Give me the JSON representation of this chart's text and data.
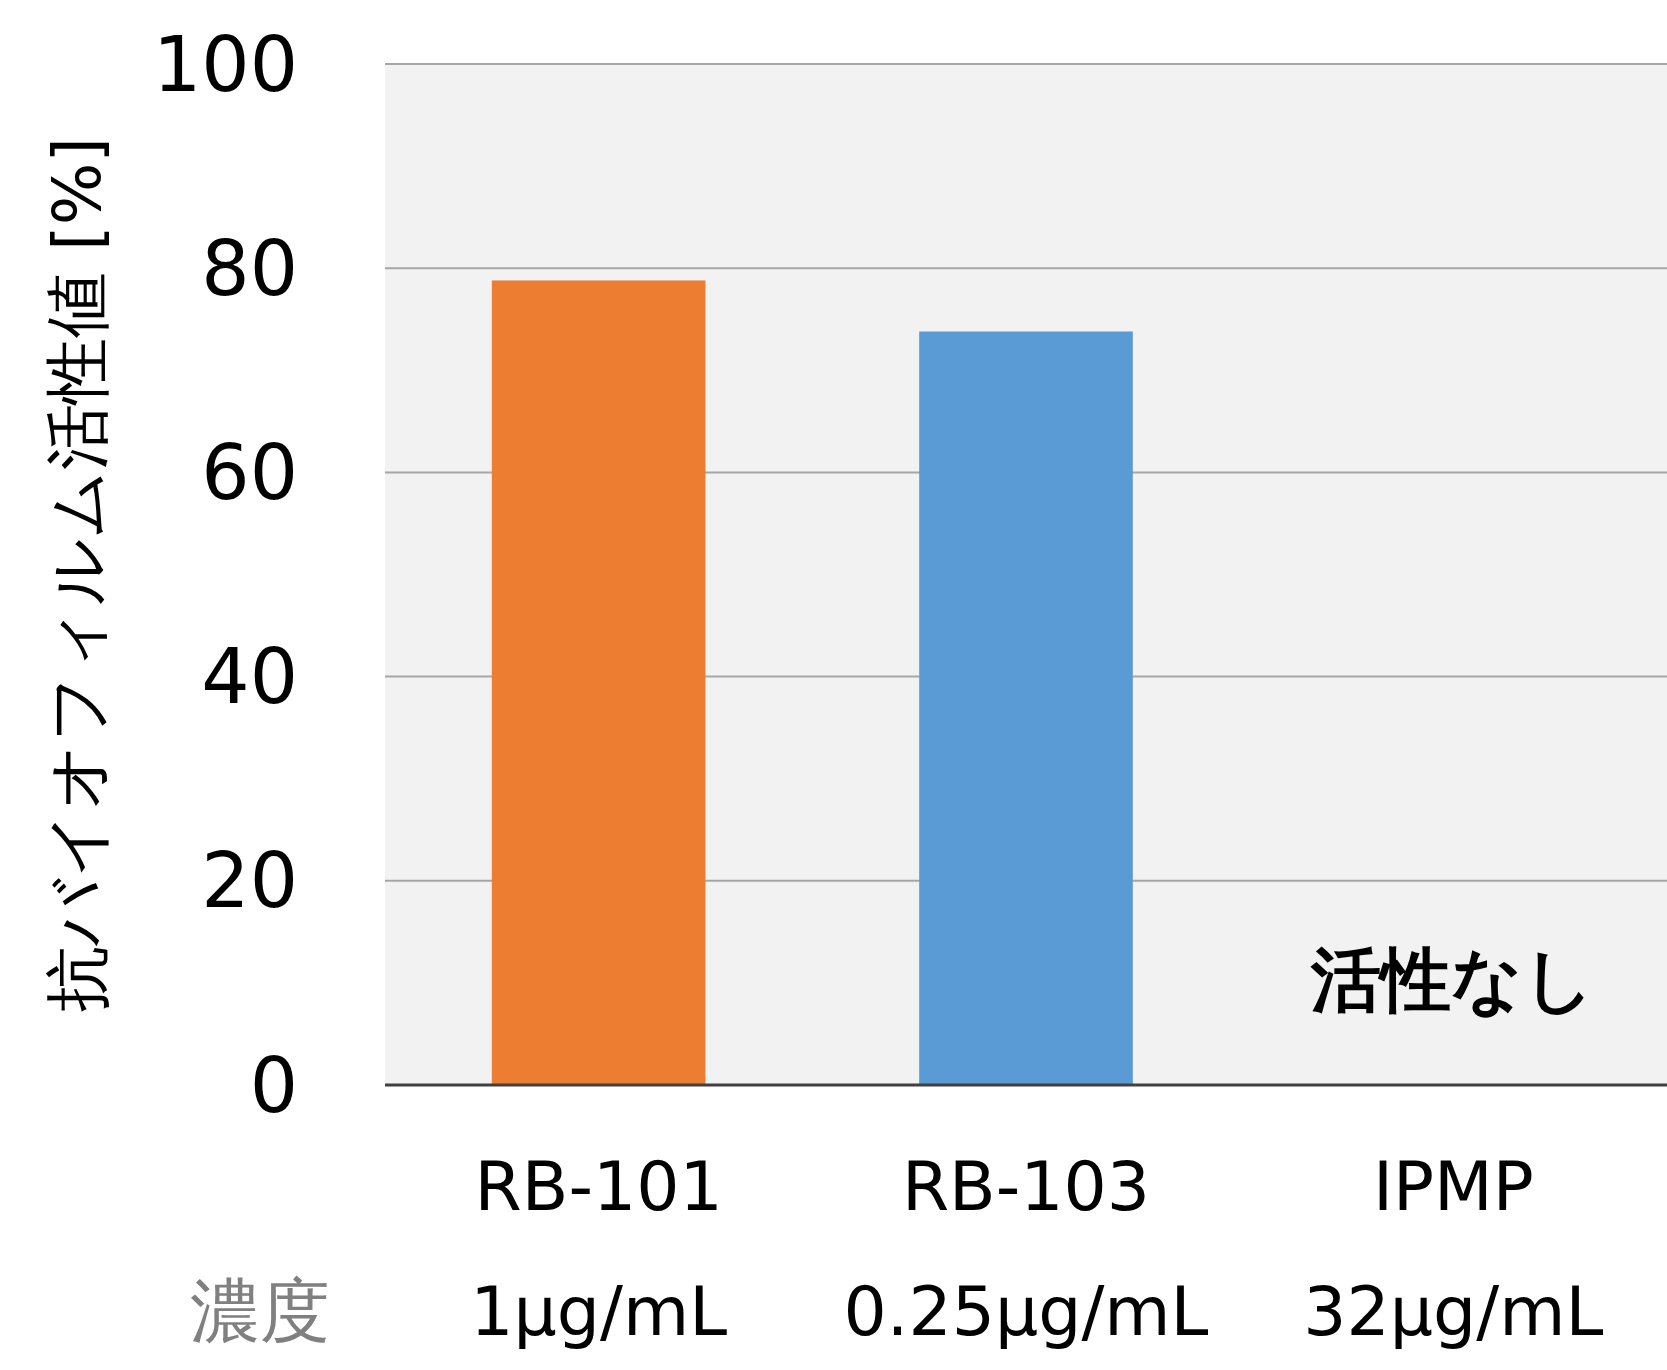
{
  "chart_data": {
    "type": "bar",
    "ylabel": "抗バイオフィルム活性値 [%]",
    "categories": [
      "RB-101\n1μg/mL",
      "RB-103\n0.25μg/mL",
      "IPMP\n32μg/mL"
    ],
    "values": [
      78.8,
      73.8,
      null
    ],
    "colors": [
      "#ed7d31",
      "#5b9bd5",
      null
    ],
    "ylim": [
      0,
      100
    ],
    "yticks": [
      0,
      20,
      40,
      60,
      80,
      100
    ],
    "grid": "y",
    "annotations": [
      "濃度",
      "活性なし"
    ]
  }
}
